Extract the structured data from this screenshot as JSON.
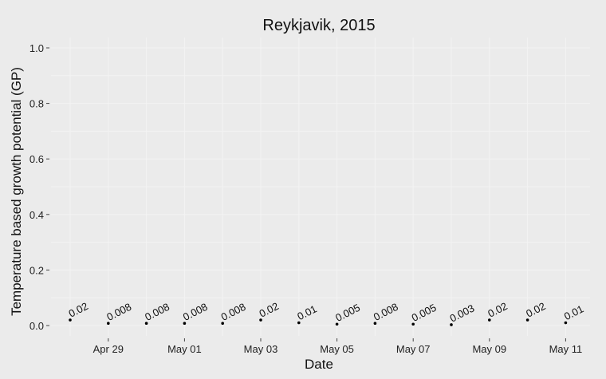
{
  "chart_data": {
    "type": "scatter",
    "title": "Reykjavik, 2015",
    "xlabel": "Date",
    "ylabel": "Temperature based growth potential (GP)",
    "ylim": [
      0,
      1.0
    ],
    "y_ticks": [
      "0.0",
      "0.2",
      "0.4",
      "0.6",
      "0.8",
      "1.0"
    ],
    "x_ticks": [
      "Apr 29",
      "May 01",
      "May 03",
      "May 05",
      "May 07",
      "May 09",
      "May 11"
    ],
    "x_tick_dates": [
      "2015-04-29",
      "2015-05-01",
      "2015-05-03",
      "2015-05-05",
      "2015-05-07",
      "2015-05-09",
      "2015-05-11"
    ],
    "x": [
      "2015-04-28",
      "2015-04-29",
      "2015-04-30",
      "2015-05-01",
      "2015-05-02",
      "2015-05-03",
      "2015-05-04",
      "2015-05-05",
      "2015-05-06",
      "2015-05-07",
      "2015-05-08",
      "2015-05-09",
      "2015-05-10",
      "2015-05-11"
    ],
    "y": [
      0.02,
      0.008,
      0.008,
      0.008,
      0.008,
      0.02,
      0.01,
      0.005,
      0.008,
      0.005,
      0.003,
      0.02,
      0.02,
      0.01
    ],
    "labels": [
      "0.02",
      "0.008",
      "0.008",
      "0.008",
      "0.008",
      "0.02",
      "0.01",
      "0.005",
      "0.008",
      "0.005",
      "0.003",
      "0.02",
      "0.02",
      "0.01"
    ],
    "grid": true,
    "colors": {
      "background": "#ebebeb",
      "grid": "#f3f3f3",
      "point": "#000000"
    }
  }
}
